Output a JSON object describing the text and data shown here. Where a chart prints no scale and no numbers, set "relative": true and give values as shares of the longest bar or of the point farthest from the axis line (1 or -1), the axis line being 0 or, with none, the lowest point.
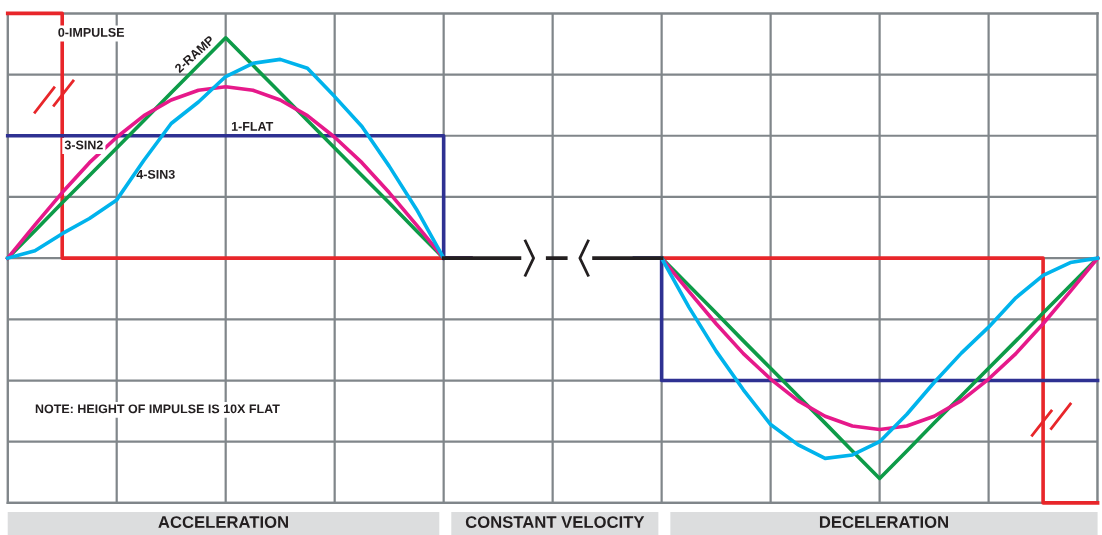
{
  "chart_data": {
    "type": "line",
    "relative": true,
    "categories": [
      null,
      null,
      null,
      null,
      null,
      null,
      null,
      null,
      null,
      null,
      null,
      null,
      null,
      null,
      null,
      null,
      null,
      null,
      null,
      null,
      null,
      null,
      null,
      null,
      null,
      null,
      null,
      null,
      null,
      null,
      null,
      null,
      null,
      null,
      null,
      null,
      null,
      null,
      null,
      null,
      null
    ],
    "series": [
      {
        "type": "step",
        "color": "#e8262a",
        "values": [
          1,
          1,
          0.5,
          0.5,
          0.5,
          0.5,
          0.5,
          0.5,
          0.5,
          0.5,
          0.5,
          0.5,
          0.5,
          0.5,
          0.5,
          0.5,
          0.5,
          null,
          null,
          null,
          null,
          null,
          null,
          null,
          0.5,
          0.5,
          0.5,
          0.5,
          0.5,
          0.5,
          0.5,
          0.5,
          0.5,
          0.5,
          0.5,
          0.5,
          0.5,
          0.5,
          0,
          0,
          0
        ]
      },
      {
        "type": "step",
        "color": "#2e3192",
        "values": [
          0.75,
          0.75,
          0.75,
          0.75,
          0.75,
          0.75,
          0.75,
          0.75,
          0.75,
          0.75,
          0.75,
          0.75,
          0.75,
          0.75,
          0.75,
          0.75,
          0.5,
          null,
          null,
          null,
          null,
          null,
          null,
          0.5,
          0.25,
          0.25,
          0.25,
          0.25,
          0.25,
          0.25,
          0.25,
          0.25,
          0.25,
          0.25,
          0.25,
          0.25,
          0.25,
          0.25,
          0.25,
          0.25,
          0.25
        ]
      },
      {
        "color": "#0d9b48",
        "values": [
          0.5,
          0.556,
          0.613,
          0.669,
          0.725,
          0.781,
          0.838,
          0.894,
          0.95,
          0.894,
          0.838,
          0.781,
          0.725,
          0.669,
          0.613,
          0.556,
          0.5,
          null,
          null,
          null,
          null,
          null,
          null,
          null,
          0.5,
          0.444,
          0.388,
          0.331,
          0.275,
          0.219,
          0.163,
          0.106,
          0.05,
          0.106,
          0.163,
          0.219,
          0.275,
          0.331,
          0.388,
          0.444,
          0.5
        ]
      },
      {
        "color": "#e6198a",
        "values": [
          0.5,
          0.568,
          0.634,
          0.695,
          0.747,
          0.791,
          0.823,
          0.843,
          0.85,
          0.843,
          0.823,
          0.791,
          0.747,
          0.695,
          0.634,
          0.568,
          0.5,
          null,
          null,
          null,
          null,
          null,
          null,
          null,
          0.5,
          0.432,
          0.366,
          0.305,
          0.253,
          0.209,
          0.177,
          0.157,
          0.15,
          0.157,
          0.177,
          0.209,
          0.253,
          0.305,
          0.366,
          0.432,
          0.5
        ]
      },
      {
        "color": "#00b3ec",
        "values": [
          0.5,
          0.515,
          0.55,
          0.581,
          0.619,
          0.7,
          0.775,
          0.819,
          0.871,
          0.898,
          0.906,
          0.888,
          0.83,
          0.769,
          0.688,
          0.6,
          0.5,
          null,
          null,
          null,
          null,
          null,
          null,
          null,
          0.5,
          0.4,
          0.31,
          0.231,
          0.16,
          0.119,
          0.091,
          0.098,
          0.125,
          0.181,
          0.246,
          0.306,
          0.359,
          0.419,
          0.465,
          0.491,
          0.5
        ]
      },
      {
        "color": "#231f20",
        "values": [
          null,
          null,
          null,
          null,
          null,
          null,
          null,
          null,
          null,
          null,
          null,
          null,
          null,
          null,
          null,
          null,
          0.5,
          0.5,
          0.5,
          0.5,
          0.5,
          0.5,
          0.5,
          0.5,
          0.5,
          null,
          null,
          null,
          null,
          null,
          null,
          null,
          null,
          null,
          null,
          null,
          null,
          null,
          null,
          null,
          null
        ]
      }
    ],
    "annotations": [
      "0-IMPULSE",
      "2-RAMP",
      "1-FLAT",
      "3-SIN2",
      "4-SIN3",
      "NOTE: HEIGHT OF IMPULSE IS 10X FLAT",
      "ACCELERATION",
      "CONSTANT VELOCITY",
      "DECELERATION"
    ],
    "grid": true,
    "marker": "none",
    "line_style": "solid"
  }
}
